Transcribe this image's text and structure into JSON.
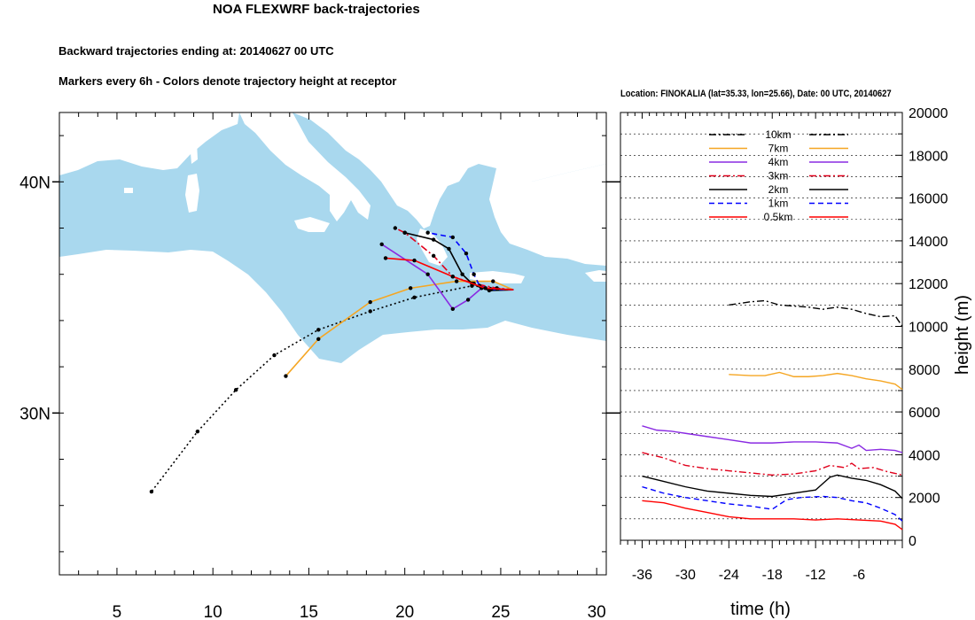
{
  "header": {
    "title": "NOA FLEXWRF back-trajectories",
    "subtitle_1": "Backward trajectories ending at: 20140627  00 UTC",
    "subtitle_2": "Markers every 6h - Colors denote trajectory height at receptor",
    "panel_title": "Location: FINOKALIA (lat=35.33,  lon=25.66), Date: 00 UTC, 20140627"
  },
  "colors": {
    "sea": "#a9d8ee",
    "land": "#ffffff",
    "10km": "#000000",
    "7km": "#f5a623",
    "4km": "#8a2be2",
    "3km": "#e0001b",
    "2km": "#000000",
    "1km": "#0000ff",
    "0.5km": "#ff0000"
  },
  "chart_data": [
    {
      "type": "line",
      "title": "Backward trajectories ending at: 20140627  00 UTC",
      "xlabel": "",
      "ylabel": "",
      "x_ticks": [
        "5",
        "10",
        "15",
        "20",
        "25",
        "30"
      ],
      "y_ticks": [
        "30N",
        "40N"
      ],
      "xlim": [
        2,
        30.5
      ],
      "ylim": [
        23,
        43
      ],
      "receptor": {
        "lon": 25.66,
        "lat": 35.33
      },
      "series": [
        {
          "name": "10km",
          "style": "dotted",
          "lon": [
            25.66,
            23.5,
            20.5,
            18.2,
            15.5,
            13.2,
            11.2,
            9.2,
            6.8
          ],
          "lat": [
            35.33,
            35.5,
            35.0,
            34.4,
            33.6,
            32.5,
            31.0,
            29.2,
            26.6
          ]
        },
        {
          "name": "7km",
          "style": "solid",
          "lon": [
            25.66,
            24.6,
            22.7,
            20.3,
            18.2,
            15.5,
            13.8
          ],
          "lat": [
            35.33,
            35.7,
            35.7,
            35.4,
            34.8,
            33.2,
            31.6
          ]
        },
        {
          "name": "4km",
          "style": "solid",
          "lon": [
            25.66,
            24.0,
            23.3,
            22.5,
            21.2,
            18.8
          ],
          "lat": [
            35.33,
            35.4,
            34.9,
            34.5,
            36.0,
            37.3
          ]
        },
        {
          "name": "3km",
          "style": "dashdot",
          "lon": [
            25.66,
            24.8,
            23.6,
            22.5,
            21.5,
            20.0,
            19.5
          ],
          "lat": [
            35.33,
            35.4,
            35.6,
            35.9,
            36.8,
            37.8,
            38.0
          ]
        },
        {
          "name": "2km",
          "style": "solid",
          "lon": [
            25.66,
            24.4,
            23.5,
            23.0,
            22.3,
            21.5,
            20.0
          ],
          "lat": [
            35.33,
            35.3,
            35.6,
            36.0,
            37.1,
            37.5,
            37.8
          ]
        },
        {
          "name": "1km",
          "style": "dashed",
          "lon": [
            25.66,
            24.5,
            23.9,
            23.6,
            23.2,
            22.5,
            21.2
          ],
          "lat": [
            35.33,
            35.35,
            35.5,
            36.0,
            36.9,
            37.6,
            37.8
          ]
        },
        {
          "name": "0.5km",
          "style": "solid",
          "lon": [
            25.66,
            24.2,
            22.5,
            20.5,
            19.0
          ],
          "lat": [
            35.33,
            35.4,
            35.9,
            36.6,
            36.7
          ]
        }
      ]
    },
    {
      "type": "line",
      "title": "Location: FINOKALIA (lat=35.33,  lon=25.66), Date: 00 UTC, 20140627",
      "xlabel": "time (h)",
      "ylabel": "height (m)",
      "x_ticks": [
        "-36",
        "-30",
        "-24",
        "-18",
        "-12",
        "-6"
      ],
      "y_ticks": [
        "0",
        "2000",
        "4000",
        "6000",
        "8000",
        "10000",
        "12000",
        "14000",
        "16000",
        "18000",
        "20000"
      ],
      "xlim": [
        -39,
        0
      ],
      "ylim": [
        0,
        20000
      ],
      "legend": "top-center",
      "series": [
        {
          "name": "10km",
          "style": "dashdot",
          "x": [
            -24,
            -21,
            -19,
            -17,
            -15,
            -13,
            -11,
            -9,
            -7,
            -5,
            -3,
            -1,
            0
          ],
          "y": [
            11000,
            11150,
            11200,
            11000,
            10950,
            10900,
            10800,
            10900,
            10800,
            10600,
            10450,
            10500,
            10000
          ]
        },
        {
          "name": "7km",
          "style": "solid",
          "x": [
            -24,
            -21,
            -19,
            -17,
            -15,
            -13,
            -11,
            -9,
            -7,
            -5,
            -3,
            -1,
            0
          ],
          "y": [
            7750,
            7700,
            7700,
            7850,
            7650,
            7650,
            7700,
            7800,
            7700,
            7550,
            7450,
            7300,
            7050
          ]
        },
        {
          "name": "4km",
          "style": "solid",
          "x": [
            -36,
            -34,
            -32,
            -30,
            -27,
            -24,
            -21,
            -18,
            -15,
            -12,
            -9,
            -7,
            -6,
            -5,
            -3,
            -1,
            0
          ],
          "y": [
            5350,
            5150,
            5100,
            5000,
            4850,
            4700,
            4550,
            4550,
            4600,
            4600,
            4550,
            4300,
            4450,
            4200,
            4250,
            4200,
            4100
          ]
        },
        {
          "name": "3km",
          "style": "dashdot",
          "x": [
            -36,
            -33,
            -30,
            -27,
            -24,
            -21,
            -18,
            -15,
            -12,
            -10,
            -8,
            -7,
            -6,
            -4,
            -2,
            0
          ],
          "y": [
            4100,
            3850,
            3500,
            3350,
            3250,
            3150,
            3050,
            3100,
            3250,
            3500,
            3400,
            3600,
            3350,
            3400,
            3200,
            3050
          ]
        },
        {
          "name": "2km",
          "style": "solid",
          "x": [
            -36,
            -33,
            -30,
            -27,
            -24,
            -21,
            -18,
            -15,
            -12,
            -10,
            -9,
            -7,
            -5,
            -3,
            -1,
            0
          ],
          "y": [
            3000,
            2750,
            2500,
            2300,
            2200,
            2100,
            2050,
            2200,
            2350,
            2950,
            3050,
            2900,
            2800,
            2600,
            2300,
            1950
          ]
        },
        {
          "name": "1km",
          "style": "dashed",
          "x": [
            -36,
            -33,
            -30,
            -27,
            -24,
            -21,
            -18,
            -16,
            -14,
            -11,
            -9,
            -7,
            -5,
            -3,
            -1,
            0
          ],
          "y": [
            2500,
            2200,
            2000,
            1850,
            1700,
            1600,
            1450,
            1900,
            2000,
            2050,
            2000,
            1850,
            1750,
            1500,
            1200,
            900
          ]
        },
        {
          "name": "0.5km",
          "style": "solid",
          "x": [
            -36,
            -33,
            -30,
            -27,
            -24,
            -21,
            -18,
            -15,
            -12,
            -9,
            -6,
            -3,
            -1,
            0
          ],
          "y": [
            1850,
            1750,
            1500,
            1300,
            1100,
            1000,
            1000,
            1000,
            950,
            1000,
            950,
            900,
            750,
            500
          ]
        }
      ]
    }
  ]
}
